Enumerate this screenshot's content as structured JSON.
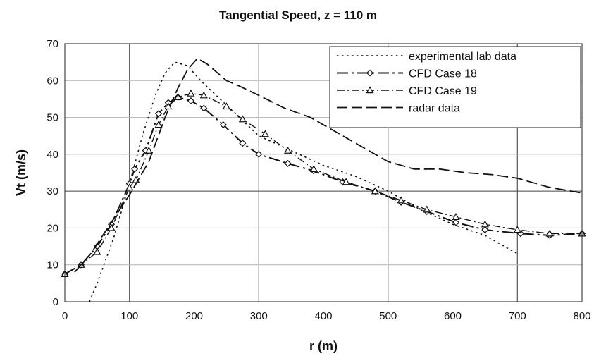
{
  "chart_data": {
    "type": "line",
    "title": "Tangential Speed, z = 110 m",
    "xlabel": "r (m)",
    "ylabel": "Vt (m/s)",
    "xlim": [
      0,
      800
    ],
    "ylim": [
      0,
      70
    ],
    "xticks": [
      0,
      100,
      200,
      300,
      400,
      500,
      600,
      700,
      800
    ],
    "yticks": [
      0,
      10,
      20,
      30,
      40,
      50,
      60,
      70
    ],
    "grid": true,
    "legend_position": "top-right",
    "series": [
      {
        "name": "experimental lab data",
        "style": "dotted",
        "marker": "none",
        "points": [
          [
            38,
            0
          ],
          [
            50,
            5
          ],
          [
            75,
            17
          ],
          [
            100,
            32
          ],
          [
            120,
            45
          ],
          [
            140,
            56
          ],
          [
            155,
            62
          ],
          [
            170,
            65
          ],
          [
            190,
            64
          ],
          [
            210,
            60
          ],
          [
            240,
            55
          ],
          [
            270,
            50
          ],
          [
            300,
            45
          ],
          [
            350,
            41
          ],
          [
            400,
            37
          ],
          [
            450,
            34
          ],
          [
            500,
            30
          ],
          [
            550,
            25
          ],
          [
            600,
            21
          ],
          [
            650,
            18
          ],
          [
            700,
            13
          ]
        ]
      },
      {
        "name": "CFD Case 18",
        "style": "long-dash-dot",
        "marker": "diamond",
        "points": [
          [
            0,
            7.5
          ],
          [
            25,
            10
          ],
          [
            50,
            15
          ],
          [
            72,
            21
          ],
          [
            100,
            32
          ],
          [
            108,
            36
          ],
          [
            125,
            41
          ],
          [
            145,
            51
          ],
          [
            160,
            54
          ],
          [
            175,
            55.5
          ],
          [
            195,
            54.5
          ],
          [
            215,
            52.5
          ],
          [
            245,
            48
          ],
          [
            275,
            43
          ],
          [
            300,
            40
          ],
          [
            345,
            37.5
          ],
          [
            385,
            35.5
          ],
          [
            430,
            32.5
          ],
          [
            480,
            30
          ],
          [
            520,
            27
          ],
          [
            560,
            24.5
          ],
          [
            605,
            21.5
          ],
          [
            650,
            19.5
          ],
          [
            705,
            18.5
          ],
          [
            750,
            18
          ],
          [
            800,
            18.5
          ]
        ]
      },
      {
        "name": "CFD Case 19",
        "style": "dash-dot",
        "marker": "triangle",
        "points": [
          [
            0,
            7.5
          ],
          [
            25,
            10
          ],
          [
            50,
            13.5
          ],
          [
            72,
            20
          ],
          [
            100,
            31
          ],
          [
            110,
            33
          ],
          [
            130,
            41
          ],
          [
            145,
            48
          ],
          [
            160,
            53
          ],
          [
            175,
            55.5
          ],
          [
            195,
            56.5
          ],
          [
            215,
            56
          ],
          [
            250,
            53
          ],
          [
            275,
            49.5
          ],
          [
            310,
            45.5
          ],
          [
            345,
            41
          ],
          [
            385,
            36
          ],
          [
            435,
            32.5
          ],
          [
            480,
            30
          ],
          [
            520,
            27.5
          ],
          [
            560,
            25
          ],
          [
            605,
            23
          ],
          [
            650,
            21
          ],
          [
            700,
            19.5
          ],
          [
            750,
            18.5
          ],
          [
            800,
            18.5
          ]
        ]
      },
      {
        "name": "radar data",
        "style": "dashed",
        "marker": "none",
        "points": [
          [
            15,
            8
          ],
          [
            40,
            13
          ],
          [
            70,
            21
          ],
          [
            100,
            29
          ],
          [
            130,
            38
          ],
          [
            155,
            50
          ],
          [
            175,
            58
          ],
          [
            190,
            63
          ],
          [
            205,
            66
          ],
          [
            220,
            64.5
          ],
          [
            250,
            60
          ],
          [
            270,
            58.5
          ],
          [
            300,
            56
          ],
          [
            340,
            52.5
          ],
          [
            380,
            50
          ],
          [
            420,
            46
          ],
          [
            460,
            42
          ],
          [
            500,
            38
          ],
          [
            540,
            36
          ],
          [
            580,
            36
          ],
          [
            620,
            35
          ],
          [
            660,
            34.5
          ],
          [
            700,
            33.5
          ],
          [
            750,
            31
          ],
          [
            800,
            29.5
          ]
        ]
      }
    ]
  }
}
